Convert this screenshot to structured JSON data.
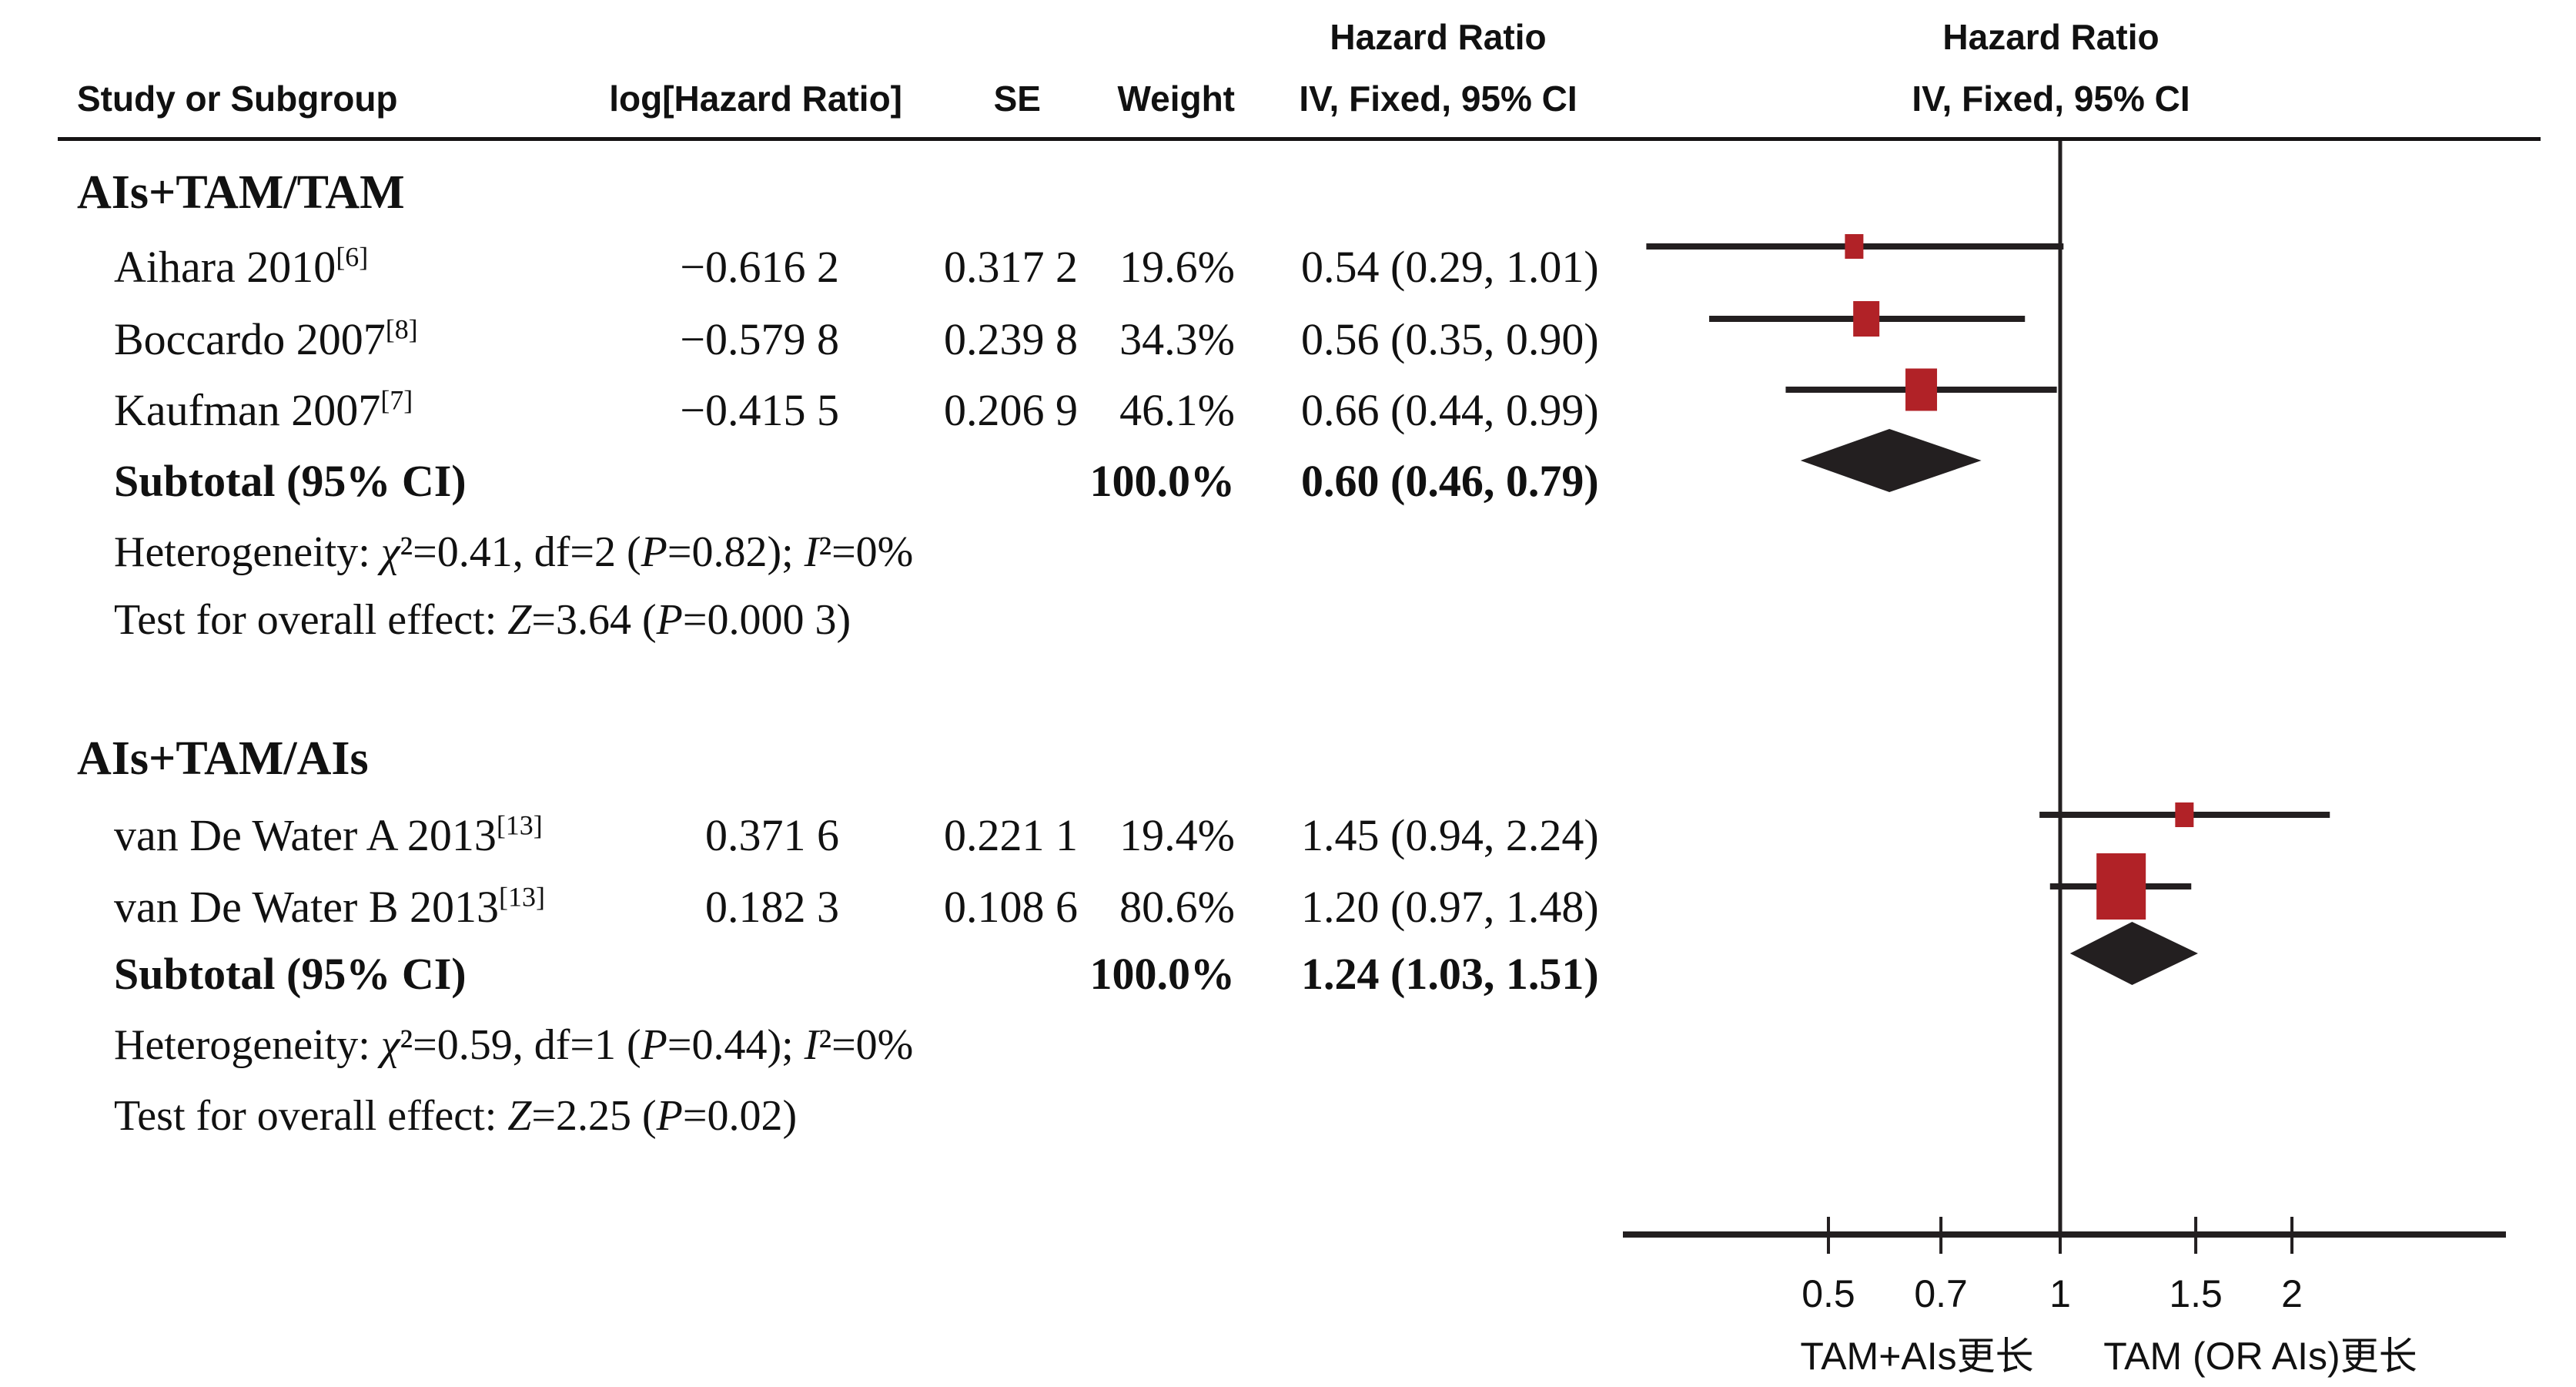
{
  "table": {
    "col_headers": {
      "study": "Study or Subgroup",
      "loghr": "log[Hazard Ratio]",
      "se": "SE",
      "weight": "Weight",
      "ci": "IV, Fixed, 95% CI"
    },
    "hr_header_left": {
      "title": "Hazard Ratio",
      "subtitle": "IV, Fixed, 95% CI"
    },
    "hr_header_right": {
      "title": "Hazard Ratio",
      "subtitle": "IV, Fixed, 95% CI"
    }
  },
  "chart_data": {
    "type": "forest",
    "scale": "log",
    "effect_measure": "Hazard Ratio",
    "model": "IV, Fixed, 95% CI",
    "axis": {
      "ticks": [
        0.5,
        0.7,
        1,
        1.5,
        2
      ],
      "tick_labels": [
        "0.5",
        "0.7",
        "1",
        "1.5",
        "2"
      ],
      "null_value": 1,
      "left_label": "TAM+AIs更长",
      "right_label": "TAM (OR AIs)更长"
    },
    "groups": [
      {
        "label": "AIs+TAM/TAM",
        "studies": [
          {
            "name": "Aihara 2010",
            "ref": "[6]",
            "log_hr": "−0.616 2",
            "se": "0.317 2",
            "weight_pct": 19.6,
            "weight_text": "19.6%",
            "hr": 0.54,
            "ci_low": 0.29,
            "ci_high": 1.01,
            "ci_text": "0.54 (0.29, 1.01)"
          },
          {
            "name": "Boccardo 2007",
            "ref": "[8]",
            "log_hr": "−0.579 8",
            "se": "0.239 8",
            "weight_pct": 34.3,
            "weight_text": "34.3%",
            "hr": 0.56,
            "ci_low": 0.35,
            "ci_high": 0.9,
            "ci_text": "0.56 (0.35, 0.90)"
          },
          {
            "name": "Kaufman 2007",
            "ref": "[7]",
            "log_hr": "−0.415 5",
            "se": "0.206 9",
            "weight_pct": 46.1,
            "weight_text": "46.1%",
            "hr": 0.66,
            "ci_low": 0.44,
            "ci_high": 0.99,
            "ci_text": "0.66 (0.44, 0.99)"
          }
        ],
        "subtotal": {
          "label": "Subtotal (95% CI)",
          "weight_text": "100.0%",
          "hr": 0.6,
          "ci_low": 0.46,
          "ci_high": 0.79,
          "ci_text": "0.60 (0.46, 0.79)"
        },
        "heterogeneity": "Heterogeneity: χ²=0.41, df=2 (P=0.82); I²=0%",
        "overall_effect": "Test for overall effect: Z=3.64 (P=0.000 3)"
      },
      {
        "label": "AIs+TAM/AIs",
        "studies": [
          {
            "name": "van De Water A 2013",
            "ref": "[13]",
            "log_hr": "0.371 6",
            "se": "0.221 1",
            "weight_pct": 19.4,
            "weight_text": "19.4%",
            "hr": 1.45,
            "ci_low": 0.94,
            "ci_high": 2.24,
            "ci_text": "1.45 (0.94, 2.24)"
          },
          {
            "name": "van De Water B 2013",
            "ref": "[13]",
            "log_hr": "0.182 3",
            "se": "0.108 6",
            "weight_pct": 80.6,
            "weight_text": "80.6%",
            "hr": 1.2,
            "ci_low": 0.97,
            "ci_high": 1.48,
            "ci_text": "1.20 (0.97, 1.48)"
          }
        ],
        "subtotal": {
          "label": "Subtotal (95% CI)",
          "weight_text": "100.0%",
          "hr": 1.24,
          "ci_low": 1.03,
          "ci_high": 1.51,
          "ci_text": "1.24 (1.03, 1.51)"
        },
        "heterogeneity": "Heterogeneity: χ²=0.59, df=1 (P=0.44); I²=0%",
        "overall_effect": "Test for overall effect: Z=2.25 (P=0.02)"
      }
    ]
  },
  "colors": {
    "marker": "#B12227",
    "diamond": "#231F20",
    "line": "#231F20",
    "text": "#111111"
  }
}
